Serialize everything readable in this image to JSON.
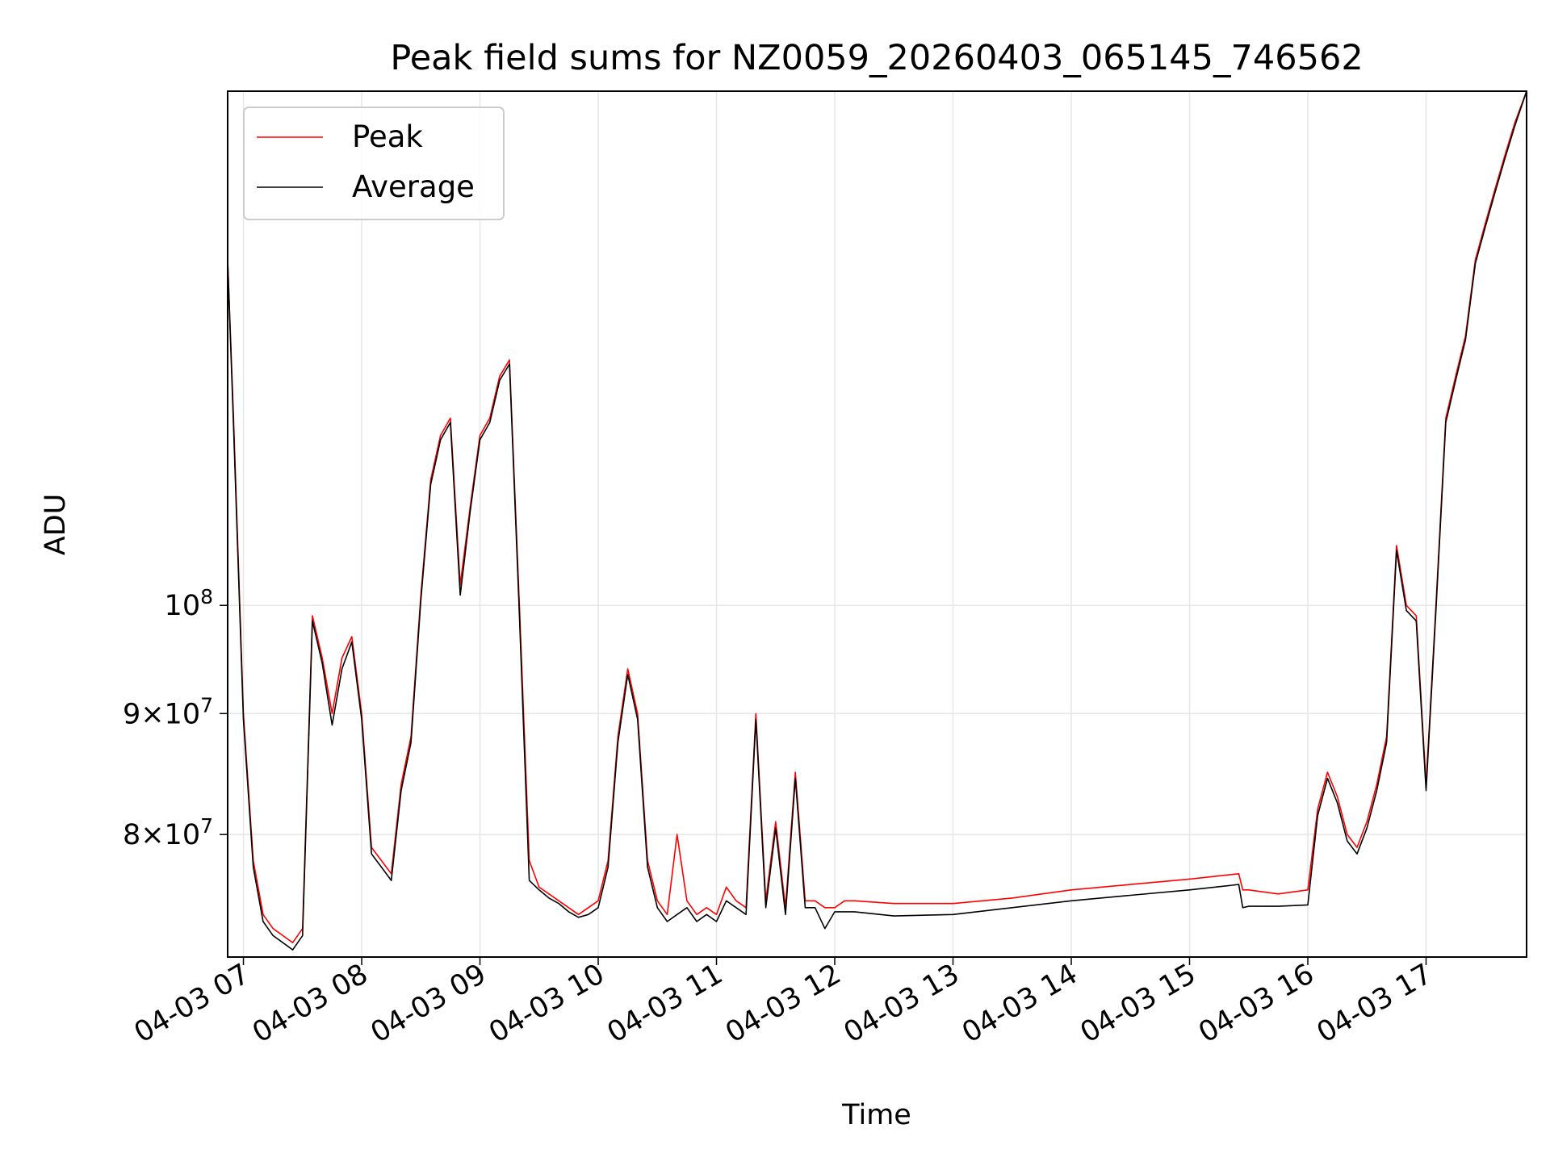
{
  "chart_data": {
    "type": "line",
    "title": "Peak field sums for NZ0059_20260403_065145_746562",
    "xlabel": "Time",
    "ylabel": "ADU",
    "xlim": [
      "2026-04-03 06:52",
      "2026-04-03 17:51"
    ],
    "ylim": [
      71000000,
      165000000
    ],
    "yscale": "log",
    "grid": true,
    "legend": "upper left",
    "x_ticks": [
      "04-03 07",
      "04-03 08",
      "04-03 09",
      "04-03 10",
      "04-03 11",
      "04-03 12",
      "04-03 13",
      "04-03 14",
      "04-03 15",
      "04-03 16",
      "04-03 17"
    ],
    "y_ticks": [
      {
        "value": 80000000,
        "mant": "8",
        "exp": "7"
      },
      {
        "value": 90000000,
        "mant": "9",
        "exp": "7"
      },
      {
        "value": 100000000,
        "mant": "",
        "exp": "8"
      }
    ],
    "colors": {
      "peak": "#ff0000",
      "average": "#000000",
      "grid": "#e6e6e6"
    },
    "series": [
      {
        "name": "Peak",
        "x": [
          "2026-04-03 06:52",
          "2026-04-03 06:55",
          "2026-04-03 07:00",
          "2026-04-03 07:05",
          "2026-04-03 07:10",
          "2026-04-03 07:15",
          "2026-04-03 07:20",
          "2026-04-03 07:25",
          "2026-04-03 07:30",
          "2026-04-03 07:35",
          "2026-04-03 07:40",
          "2026-04-03 07:45",
          "2026-04-03 07:50",
          "2026-04-03 07:55",
          "2026-04-03 08:00",
          "2026-04-03 08:05",
          "2026-04-03 08:10",
          "2026-04-03 08:15",
          "2026-04-03 08:20",
          "2026-04-03 08:25",
          "2026-04-03 08:30",
          "2026-04-03 08:35",
          "2026-04-03 08:40",
          "2026-04-03 08:45",
          "2026-04-03 08:50",
          "2026-04-03 08:55",
          "2026-04-03 09:00",
          "2026-04-03 09:05",
          "2026-04-03 09:10",
          "2026-04-03 09:15",
          "2026-04-03 09:20",
          "2026-04-03 09:25",
          "2026-04-03 09:30",
          "2026-04-03 09:35",
          "2026-04-03 09:40",
          "2026-04-03 09:45",
          "2026-04-03 09:50",
          "2026-04-03 09:55",
          "2026-04-03 10:00",
          "2026-04-03 10:05",
          "2026-04-03 10:10",
          "2026-04-03 10:15",
          "2026-04-03 10:20",
          "2026-04-03 10:25",
          "2026-04-03 10:30",
          "2026-04-03 10:35",
          "2026-04-03 10:40",
          "2026-04-03 10:45",
          "2026-04-03 10:50",
          "2026-04-03 10:55",
          "2026-04-03 11:00",
          "2026-04-03 11:05",
          "2026-04-03 11:10",
          "2026-04-03 11:15",
          "2026-04-03 11:20",
          "2026-04-03 11:25",
          "2026-04-03 11:30",
          "2026-04-03 11:35",
          "2026-04-03 11:40",
          "2026-04-03 11:45",
          "2026-04-03 11:50",
          "2026-04-03 11:55",
          "2026-04-03 12:00",
          "2026-04-03 12:05",
          "2026-04-03 12:10",
          "2026-04-03 12:30",
          "2026-04-03 13:00",
          "2026-04-03 13:30",
          "2026-04-03 14:00",
          "2026-04-03 14:30",
          "2026-04-03 15:00",
          "2026-04-03 15:25",
          "2026-04-03 15:27",
          "2026-04-03 15:30",
          "2026-04-03 15:45",
          "2026-04-03 16:00",
          "2026-04-03 16:05",
          "2026-04-03 16:10",
          "2026-04-03 16:15",
          "2026-04-03 16:20",
          "2026-04-03 16:25",
          "2026-04-03 16:30",
          "2026-04-03 16:35",
          "2026-04-03 16:40",
          "2026-04-03 16:45",
          "2026-04-03 16:50",
          "2026-04-03 16:55",
          "2026-04-03 17:00",
          "2026-04-03 17:05",
          "2026-04-03 17:10",
          "2026-04-03 17:15",
          "2026-04-03 17:20",
          "2026-04-03 17:25",
          "2026-04-03 17:30",
          "2026-04-03 17:35",
          "2026-04-03 17:40",
          "2026-04-03 17:45",
          "2026-04-03 17:51"
        ],
        "y": [
          140000000,
          120000000,
          90000000,
          78000000,
          74000000,
          73000000,
          72500000,
          72000000,
          73000000,
          99000000,
          95000000,
          90000000,
          95000000,
          97000000,
          90000000,
          79000000,
          78000000,
          77000000,
          84000000,
          88000000,
          101000000,
          113000000,
          118000000,
          120000000,
          102000000,
          110000000,
          118000000,
          120000000,
          125000000,
          127000000,
          100000000,
          78000000,
          76000000,
          75500000,
          75000000,
          74500000,
          74000000,
          74500000,
          75000000,
          78000000,
          88000000,
          94000000,
          90000000,
          78000000,
          75000000,
          74000000,
          80000000,
          75000000,
          74000000,
          74500000,
          74000000,
          76000000,
          75000000,
          74500000,
          90000000,
          75000000,
          81000000,
          74500000,
          85000000,
          75000000,
          75000000,
          74500000,
          74500000,
          75000000,
          75000000,
          74800000,
          74800000,
          75200000,
          75800000,
          76200000,
          76600000,
          77000000,
          75800000,
          75800000,
          75500000,
          75800000,
          82000000,
          85000000,
          83000000,
          80000000,
          79000000,
          81000000,
          84000000,
          88000000,
          106000000,
          100000000,
          99000000,
          84000000,
          100000000,
          120000000,
          125000000,
          130000000,
          140000000,
          145000000,
          150000000,
          155000000,
          160000000,
          165000000
        ]
      },
      {
        "name": "Average",
        "x": [
          "2026-04-03 06:52",
          "2026-04-03 06:55",
          "2026-04-03 07:00",
          "2026-04-03 07:05",
          "2026-04-03 07:10",
          "2026-04-03 07:15",
          "2026-04-03 07:20",
          "2026-04-03 07:25",
          "2026-04-03 07:30",
          "2026-04-03 07:35",
          "2026-04-03 07:40",
          "2026-04-03 07:45",
          "2026-04-03 07:50",
          "2026-04-03 07:55",
          "2026-04-03 08:00",
          "2026-04-03 08:05",
          "2026-04-03 08:10",
          "2026-04-03 08:15",
          "2026-04-03 08:20",
          "2026-04-03 08:25",
          "2026-04-03 08:30",
          "2026-04-03 08:35",
          "2026-04-03 08:40",
          "2026-04-03 08:45",
          "2026-04-03 08:50",
          "2026-04-03 08:55",
          "2026-04-03 09:00",
          "2026-04-03 09:05",
          "2026-04-03 09:10",
          "2026-04-03 09:15",
          "2026-04-03 09:20",
          "2026-04-03 09:25",
          "2026-04-03 09:30",
          "2026-04-03 09:35",
          "2026-04-03 09:40",
          "2026-04-03 09:45",
          "2026-04-03 09:50",
          "2026-04-03 09:55",
          "2026-04-03 10:00",
          "2026-04-03 10:05",
          "2026-04-03 10:10",
          "2026-04-03 10:15",
          "2026-04-03 10:20",
          "2026-04-03 10:25",
          "2026-04-03 10:30",
          "2026-04-03 10:35",
          "2026-04-03 10:40",
          "2026-04-03 10:45",
          "2026-04-03 10:50",
          "2026-04-03 10:55",
          "2026-04-03 11:00",
          "2026-04-03 11:05",
          "2026-04-03 11:10",
          "2026-04-03 11:15",
          "2026-04-03 11:20",
          "2026-04-03 11:25",
          "2026-04-03 11:30",
          "2026-04-03 11:35",
          "2026-04-03 11:40",
          "2026-04-03 11:45",
          "2026-04-03 11:50",
          "2026-04-03 11:55",
          "2026-04-03 12:00",
          "2026-04-03 12:05",
          "2026-04-03 12:10",
          "2026-04-03 12:30",
          "2026-04-03 13:00",
          "2026-04-03 13:30",
          "2026-04-03 14:00",
          "2026-04-03 14:30",
          "2026-04-03 15:00",
          "2026-04-03 15:25",
          "2026-04-03 15:27",
          "2026-04-03 15:30",
          "2026-04-03 15:45",
          "2026-04-03 16:00",
          "2026-04-03 16:05",
          "2026-04-03 16:10",
          "2026-04-03 16:15",
          "2026-04-03 16:20",
          "2026-04-03 16:25",
          "2026-04-03 16:30",
          "2026-04-03 16:35",
          "2026-04-03 16:40",
          "2026-04-03 16:45",
          "2026-04-03 16:50",
          "2026-04-03 16:55",
          "2026-04-03 17:00",
          "2026-04-03 17:05",
          "2026-04-03 17:10",
          "2026-04-03 17:15",
          "2026-04-03 17:20",
          "2026-04-03 17:25",
          "2026-04-03 17:30",
          "2026-04-03 17:35",
          "2026-04-03 17:40",
          "2026-04-03 17:45",
          "2026-04-03 17:51"
        ],
        "y": [
          140000000,
          119000000,
          89500000,
          77500000,
          73500000,
          72500000,
          72000000,
          71500000,
          72500000,
          98500000,
          94500000,
          89000000,
          94000000,
          96500000,
          89500000,
          78500000,
          77500000,
          76500000,
          83500000,
          87500000,
          100500000,
          112500000,
          117500000,
          119500000,
          101000000,
          109500000,
          117500000,
          119500000,
          124500000,
          126500000,
          99000000,
          76500000,
          75800000,
          75200000,
          74800000,
          74200000,
          73800000,
          74000000,
          74500000,
          77500000,
          87500000,
          93500000,
          89500000,
          77500000,
          74500000,
          73500000,
          74000000,
          74500000,
          73500000,
          74000000,
          73500000,
          75000000,
          74500000,
          74000000,
          89500000,
          74500000,
          80500000,
          74000000,
          84500000,
          74500000,
          74500000,
          73000000,
          74200000,
          74200000,
          74200000,
          73900000,
          74000000,
          74500000,
          75000000,
          75400000,
          75800000,
          76200000,
          74500000,
          74600000,
          74600000,
          74700000,
          81500000,
          84500000,
          82500000,
          79500000,
          78500000,
          80500000,
          83500000,
          87500000,
          105500000,
          99500000,
          98500000,
          83500000,
          99500000,
          119500000,
          124500000,
          129500000,
          139500000,
          144500000,
          149500000,
          154500000,
          159500000,
          165000000
        ]
      }
    ]
  }
}
